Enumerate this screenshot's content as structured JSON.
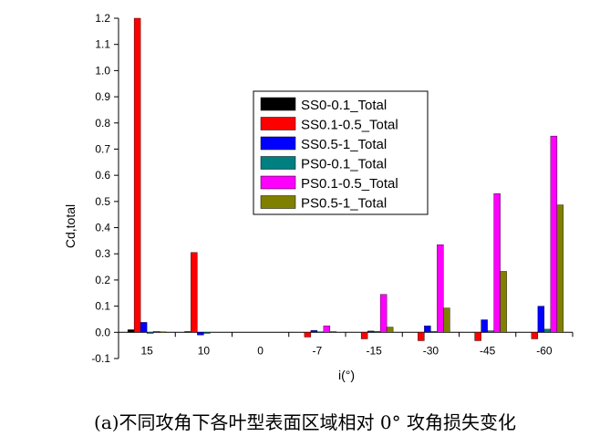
{
  "chart_data": {
    "type": "bar",
    "title": "",
    "xlabel": "i(°)",
    "ylabel": "Cd,total",
    "ylim": [
      -0.1,
      1.2
    ],
    "yticks": [
      "-0.1",
      "0.0",
      "0.1",
      "0.2",
      "0.3",
      "0.4",
      "0.5",
      "0.6",
      "0.7",
      "0.8",
      "0.9",
      "1.0",
      "1.1",
      "1.2"
    ],
    "categories": [
      "15",
      "10",
      "0",
      "-7",
      "-15",
      "-30",
      "-45",
      "-60"
    ],
    "legend_position": "upper-center",
    "series": [
      {
        "name": "SS0-0.1_Total",
        "color": "#000000",
        "values": [
          0.01,
          0.003,
          0,
          0,
          0,
          0,
          0,
          0
        ]
      },
      {
        "name": "SS0.1-0.5_Total",
        "color": "#ff0000",
        "values": [
          1.2,
          0.305,
          0,
          -0.018,
          -0.025,
          -0.032,
          -0.032,
          -0.025
        ]
      },
      {
        "name": "SS0.5-1_Total",
        "color": "#0000ff",
        "values": [
          0.038,
          -0.01,
          0,
          0.007,
          0.005,
          0.025,
          0.048,
          0.1
        ]
      },
      {
        "name": "PS0-0.1_Total",
        "color": "#008080",
        "values": [
          -0.004,
          -0.004,
          0,
          0.002,
          0.004,
          0.004,
          0.006,
          0.012
        ]
      },
      {
        "name": "PS0.1-0.5_Total",
        "color": "#ff00ff",
        "values": [
          0.004,
          0,
          0,
          0.025,
          0.145,
          0.335,
          0.53,
          0.75
        ]
      },
      {
        "name": "PS0.5-1_Total",
        "color": "#808000",
        "values": [
          0.002,
          0,
          0,
          0.003,
          0.02,
          0.093,
          0.233,
          0.487
        ]
      }
    ]
  },
  "caption": "(a)不同攻角下各叶型表面区域相对 0°  攻角损失变化"
}
